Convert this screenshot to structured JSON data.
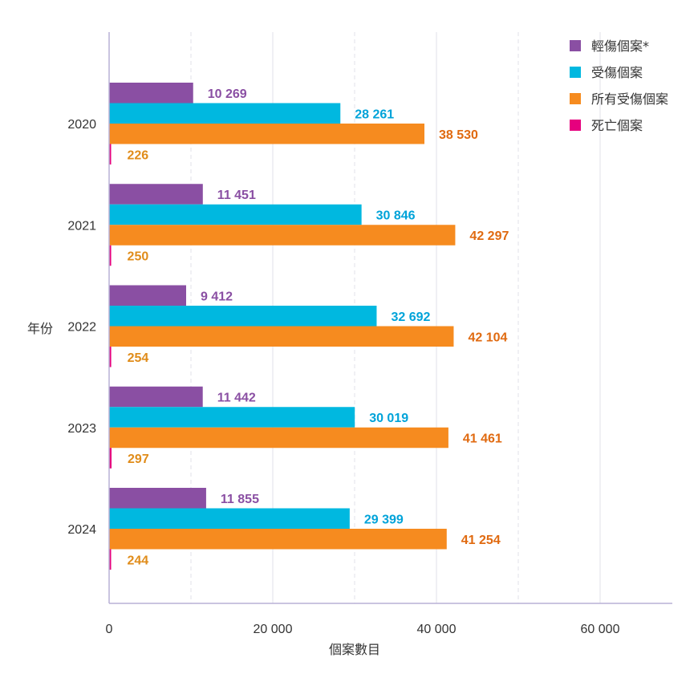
{
  "chart_data": {
    "type": "bar",
    "orientation": "horizontal",
    "categories": [
      "2020",
      "2021",
      "2022",
      "2023",
      "2024"
    ],
    "series": [
      {
        "name": "輕傷個案*",
        "color": "#8a4fa3",
        "values": [
          10269,
          11451,
          9412,
          11442,
          11855
        ],
        "labels": [
          "10 269",
          "11 451",
          "9 412",
          "11 442",
          "11 855"
        ]
      },
      {
        "name": "受傷個案",
        "color": "#00b8e0",
        "values": [
          28261,
          30846,
          32692,
          30019,
          29399
        ],
        "labels": [
          "28 261",
          "30 846",
          "32 692",
          "30 019",
          "29 399"
        ]
      },
      {
        "name": "所有受傷個案",
        "color": "#f68b1f",
        "values": [
          38530,
          42297,
          42104,
          41461,
          41254
        ],
        "labels": [
          "38 530",
          "42 297",
          "42 104",
          "41 461",
          "41 254"
        ]
      },
      {
        "name": "死亡個案",
        "color": "#e6007e",
        "values": [
          226,
          250,
          254,
          297,
          244
        ],
        "labels": [
          "226",
          "250",
          "254",
          "297",
          "244"
        ]
      }
    ],
    "label_colors": [
      "#8a4fa3",
      "#00a3d9",
      "#e06a10",
      "#e08c1a"
    ],
    "xlabel": "個案數目",
    "ylabel": "年份",
    "xlim": [
      0,
      69000
    ],
    "xticks": [
      0,
      20000,
      40000,
      60000
    ],
    "xtick_labels": [
      "0",
      "20 000",
      "40 000",
      "60 000"
    ],
    "grid": "vertical dashed",
    "legend_position": "top-right"
  }
}
